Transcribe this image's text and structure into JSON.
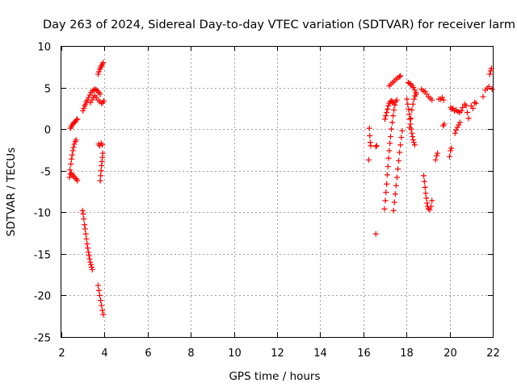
{
  "chart_data": {
    "type": "scatter",
    "title": "Day 263 of 2024, Sidereal Day-to-day VTEC variation (SDTVAR) for receiver larm",
    "xlabel": "GPS time / hours",
    "ylabel": "SDTVAR / TECUs",
    "xlim": [
      2,
      22
    ],
    "ylim": [
      -25,
      10
    ],
    "xticks": [
      2,
      4,
      6,
      8,
      10,
      12,
      14,
      16,
      18,
      20,
      22
    ],
    "yticks": [
      -25,
      -20,
      -15,
      -10,
      -5,
      0,
      5,
      10
    ],
    "grid": true,
    "marker": "+",
    "color": "#ff0000",
    "series": [
      {
        "points": [
          [
            2.38,
            -5.8
          ],
          [
            2.42,
            -5.4
          ],
          [
            2.46,
            -5.3
          ],
          [
            2.52,
            -5.5
          ],
          [
            2.58,
            -5.7
          ],
          [
            2.64,
            -5.9
          ],
          [
            2.7,
            -6.0
          ],
          [
            2.74,
            -6.2
          ],
          [
            2.4,
            -4.9
          ],
          [
            2.44,
            -4.2
          ],
          [
            2.47,
            -3.6
          ],
          [
            2.5,
            -3.1
          ],
          [
            2.53,
            -2.6
          ],
          [
            2.56,
            -2.2
          ],
          [
            2.6,
            -1.8
          ],
          [
            2.64,
            -1.5
          ],
          [
            2.68,
            -1.3
          ],
          [
            2.42,
            0.1
          ],
          [
            2.46,
            0.3
          ],
          [
            2.5,
            0.5
          ],
          [
            2.55,
            0.7
          ],
          [
            2.6,
            0.8
          ],
          [
            2.65,
            0.9
          ],
          [
            2.7,
            1.1
          ],
          [
            2.74,
            1.2
          ],
          [
            2.98,
            -9.8
          ],
          [
            3.01,
            -10.2
          ],
          [
            3.04,
            -10.8
          ],
          [
            3.07,
            -11.5
          ],
          [
            3.1,
            -12.0
          ],
          [
            3.13,
            -12.6
          ],
          [
            3.16,
            -13.2
          ],
          [
            3.19,
            -13.8
          ],
          [
            3.22,
            -14.3
          ],
          [
            3.25,
            -14.8
          ],
          [
            3.28,
            -15.2
          ],
          [
            3.31,
            -15.6
          ],
          [
            3.34,
            -16.0
          ],
          [
            3.37,
            -16.3
          ],
          [
            3.4,
            -16.6
          ],
          [
            3.43,
            -16.9
          ],
          [
            3.0,
            2.2
          ],
          [
            3.04,
            2.5
          ],
          [
            3.08,
            2.8
          ],
          [
            3.12,
            3.0
          ],
          [
            3.16,
            3.3
          ],
          [
            3.2,
            3.5
          ],
          [
            3.26,
            3.8
          ],
          [
            3.32,
            4.1
          ],
          [
            3.38,
            4.4
          ],
          [
            3.44,
            4.6
          ],
          [
            3.5,
            4.7
          ],
          [
            3.56,
            4.8
          ],
          [
            3.62,
            4.7
          ],
          [
            3.68,
            4.6
          ],
          [
            3.74,
            4.4
          ],
          [
            3.8,
            4.2
          ],
          [
            3.35,
            3.2
          ],
          [
            3.42,
            3.5
          ],
          [
            3.48,
            3.8
          ],
          [
            3.55,
            4.0
          ],
          [
            3.62,
            3.8
          ],
          [
            3.7,
            3.5
          ],
          [
            3.78,
            3.3
          ],
          [
            3.86,
            3.1
          ],
          [
            3.92,
            3.2
          ],
          [
            3.97,
            3.4
          ],
          [
            3.7,
            -18.8
          ],
          [
            3.74,
            -19.4
          ],
          [
            3.78,
            -20.0
          ],
          [
            3.82,
            -20.6
          ],
          [
            3.86,
            -21.2
          ],
          [
            3.9,
            -21.8
          ],
          [
            3.94,
            -22.3
          ],
          [
            3.7,
            6.6
          ],
          [
            3.74,
            6.9
          ],
          [
            3.78,
            7.2
          ],
          [
            3.82,
            7.4
          ],
          [
            3.86,
            7.6
          ],
          [
            3.9,
            7.8
          ],
          [
            3.94,
            8.0
          ],
          [
            3.72,
            -1.8
          ],
          [
            3.78,
            -2.0
          ],
          [
            3.84,
            -1.7
          ],
          [
            3.9,
            -1.9
          ],
          [
            3.8,
            -6.2
          ],
          [
            3.82,
            -5.6
          ],
          [
            3.84,
            -5.0
          ],
          [
            3.86,
            -4.4
          ],
          [
            3.88,
            -3.9
          ],
          [
            3.9,
            -3.4
          ],
          [
            3.92,
            -2.9
          ],
          [
            16.25,
            -3.7
          ],
          [
            16.28,
            0.1
          ],
          [
            16.3,
            -0.8
          ],
          [
            16.32,
            -1.6
          ],
          [
            16.34,
            -2.0
          ],
          [
            16.58,
            -2.1
          ],
          [
            16.62,
            -2.0
          ],
          [
            16.58,
            -12.6
          ],
          [
            16.98,
            -9.6
          ],
          [
            17.02,
            -8.6
          ],
          [
            17.05,
            -7.6
          ],
          [
            17.08,
            -6.6
          ],
          [
            17.11,
            -5.5
          ],
          [
            17.14,
            -4.5
          ],
          [
            17.17,
            -3.5
          ],
          [
            17.2,
            -2.6
          ],
          [
            17.23,
            -1.7
          ],
          [
            17.26,
            -0.9
          ],
          [
            17.3,
            0.0
          ],
          [
            17.34,
            0.8
          ],
          [
            17.38,
            1.6
          ],
          [
            17.42,
            2.3
          ],
          [
            17.46,
            2.9
          ],
          [
            17.5,
            3.3
          ],
          [
            17.55,
            3.5
          ],
          [
            17.0,
            1.2
          ],
          [
            17.04,
            1.6
          ],
          [
            17.08,
            2.0
          ],
          [
            17.12,
            2.4
          ],
          [
            17.16,
            2.8
          ],
          [
            17.2,
            3.1
          ],
          [
            17.25,
            3.3
          ],
          [
            17.3,
            3.4
          ],
          [
            17.35,
            3.3
          ],
          [
            17.4,
            3.2
          ],
          [
            17.4,
            -9.8
          ],
          [
            17.44,
            -8.8
          ],
          [
            17.48,
            -7.8
          ],
          [
            17.52,
            -6.8
          ],
          [
            17.56,
            -5.8
          ],
          [
            17.6,
            -4.8
          ],
          [
            17.64,
            -3.8
          ],
          [
            17.68,
            -2.8
          ],
          [
            17.72,
            -1.9
          ],
          [
            17.76,
            -1.0
          ],
          [
            17.8,
            -0.2
          ],
          [
            17.2,
            5.2
          ],
          [
            17.28,
            5.4
          ],
          [
            17.36,
            5.6
          ],
          [
            17.44,
            5.8
          ],
          [
            17.52,
            6.0
          ],
          [
            17.6,
            6.2
          ],
          [
            17.68,
            6.3
          ],
          [
            17.72,
            6.4
          ],
          [
            18.02,
            3.6
          ],
          [
            18.06,
            3.0
          ],
          [
            18.1,
            2.4
          ],
          [
            18.13,
            1.8
          ],
          [
            18.16,
            1.2
          ],
          [
            18.19,
            0.6
          ],
          [
            18.22,
            0.0
          ],
          [
            18.25,
            -0.5
          ],
          [
            18.28,
            -0.9
          ],
          [
            18.31,
            -1.3
          ],
          [
            18.34,
            -1.6
          ],
          [
            18.38,
            -1.9
          ],
          [
            18.08,
            5.6
          ],
          [
            18.14,
            5.5
          ],
          [
            18.2,
            5.4
          ],
          [
            18.26,
            5.2
          ],
          [
            18.32,
            5.0
          ],
          [
            18.38,
            4.7
          ],
          [
            18.44,
            4.4
          ],
          [
            18.15,
            0.2
          ],
          [
            18.2,
            1.3
          ],
          [
            18.25,
            2.3
          ],
          [
            18.3,
            3.0
          ],
          [
            18.35,
            3.6
          ],
          [
            18.4,
            4.0
          ],
          [
            18.45,
            4.2
          ],
          [
            18.7,
            4.8
          ],
          [
            18.78,
            4.6
          ],
          [
            18.86,
            4.5
          ],
          [
            18.94,
            4.2
          ],
          [
            19.02,
            3.9
          ],
          [
            19.1,
            3.7
          ],
          [
            19.18,
            3.5
          ],
          [
            18.8,
            -5.6
          ],
          [
            18.83,
            -6.3
          ],
          [
            18.86,
            -7.0
          ],
          [
            18.89,
            -7.7
          ],
          [
            18.92,
            -8.3
          ],
          [
            18.95,
            -8.9
          ],
          [
            18.98,
            -9.3
          ],
          [
            19.02,
            -9.6
          ],
          [
            19.08,
            -9.7
          ],
          [
            19.14,
            -9.3
          ],
          [
            19.18,
            -8.6
          ],
          [
            19.35,
            -3.7
          ],
          [
            19.4,
            -3.2
          ],
          [
            19.44,
            -2.9
          ],
          [
            19.5,
            3.6
          ],
          [
            19.58,
            3.6
          ],
          [
            19.66,
            3.8
          ],
          [
            19.72,
            3.5
          ],
          [
            19.7,
            0.4
          ],
          [
            19.75,
            0.6
          ],
          [
            20.0,
            -3.3
          ],
          [
            20.04,
            -2.6
          ],
          [
            20.08,
            -2.3
          ],
          [
            20.05,
            2.6
          ],
          [
            20.1,
            2.4
          ],
          [
            20.16,
            2.5
          ],
          [
            20.22,
            2.2
          ],
          [
            20.3,
            2.3
          ],
          [
            20.38,
            2.1
          ],
          [
            20.46,
            2.0
          ],
          [
            20.54,
            2.2
          ],
          [
            20.25,
            -0.5
          ],
          [
            20.3,
            -0.1
          ],
          [
            20.36,
            0.2
          ],
          [
            20.42,
            0.5
          ],
          [
            20.48,
            0.8
          ],
          [
            20.6,
            2.6
          ],
          [
            20.7,
            3.0
          ],
          [
            20.76,
            2.8
          ],
          [
            20.82,
            2.0
          ],
          [
            20.88,
            1.3
          ],
          [
            21.0,
            2.8
          ],
          [
            21.08,
            2.5
          ],
          [
            21.16,
            3.2
          ],
          [
            21.22,
            3.1
          ],
          [
            21.55,
            3.9
          ],
          [
            21.65,
            4.7
          ],
          [
            21.75,
            4.9
          ],
          [
            21.82,
            5.1
          ],
          [
            21.86,
            6.6
          ],
          [
            21.9,
            7.0
          ],
          [
            21.94,
            7.3
          ],
          [
            21.97,
            4.8
          ]
        ]
      }
    ]
  }
}
